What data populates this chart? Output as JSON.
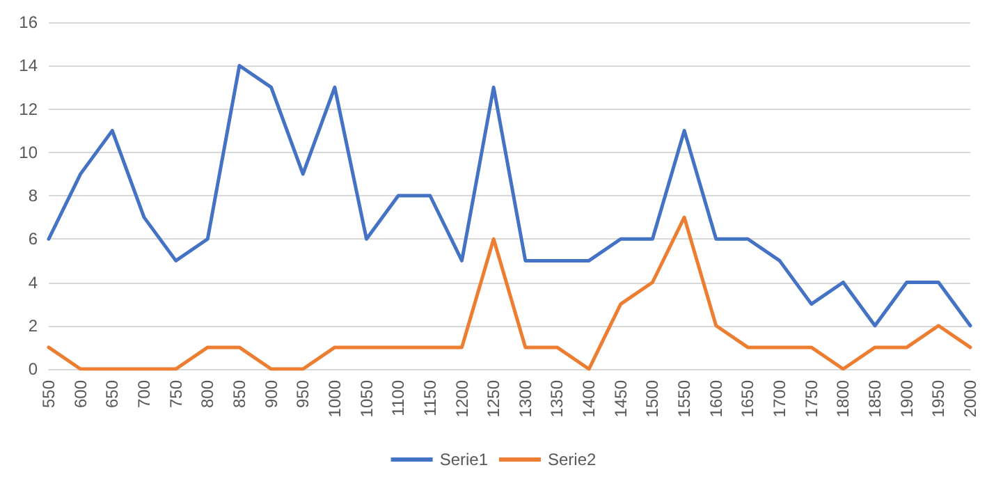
{
  "chart_data": {
    "type": "line",
    "categories": [
      "550",
      "600",
      "650",
      "700",
      "750",
      "800",
      "850",
      "900",
      "950",
      "1000",
      "1050",
      "1100",
      "1150",
      "1200",
      "1250",
      "1300",
      "1350",
      "1400",
      "1450",
      "1500",
      "1550",
      "1600",
      "1650",
      "1700",
      "1750",
      "1800",
      "1850",
      "1900",
      "1950",
      "2000"
    ],
    "series": [
      {
        "name": "Serie1",
        "color": "#4472c4",
        "values": [
          6,
          9,
          11,
          7,
          5,
          6,
          14,
          13,
          9,
          13,
          6,
          8,
          8,
          5,
          13,
          5,
          5,
          5,
          6,
          6,
          11,
          6,
          6,
          5,
          3,
          4,
          2,
          4,
          4,
          2
        ]
      },
      {
        "name": "Serie2",
        "color": "#ed7d31",
        "values": [
          1,
          0,
          0,
          0,
          0,
          1,
          1,
          0,
          0,
          1,
          1,
          1,
          1,
          1,
          6,
          1,
          1,
          0,
          3,
          4,
          7,
          2,
          1,
          1,
          1,
          0,
          1,
          1,
          2,
          1
        ]
      }
    ],
    "ylim": [
      0,
      16
    ],
    "yticks": [
      0,
      2,
      4,
      6,
      8,
      10,
      12,
      14,
      16
    ],
    "grid": "y",
    "legend": "bottom",
    "marker": "none",
    "line_style": "solid"
  }
}
